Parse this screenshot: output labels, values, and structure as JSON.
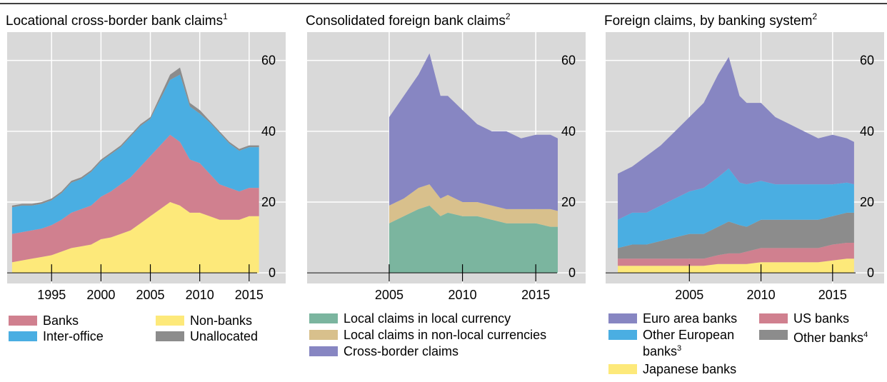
{
  "chart_data": [
    {
      "type": "area",
      "title": "Locational cross-border bank claims",
      "title_note": "1",
      "x": [
        1991,
        1992,
        1993,
        1994,
        1995,
        1996,
        1997,
        1998,
        1999,
        2000,
        2001,
        2002,
        2003,
        2004,
        2005,
        2006,
        2007,
        2008,
        2009,
        2010,
        2011,
        2012,
        2013,
        2014,
        2015,
        2016
      ],
      "xlim": [
        1990.5,
        2018.7
      ],
      "xticks": [
        1995,
        2000,
        2005,
        2010,
        2015
      ],
      "ylim": [
        -3,
        68
      ],
      "yticks": [
        0,
        20,
        40,
        60
      ],
      "grid": true,
      "series": [
        {
          "name": "Non-banks",
          "color": "#fde97a",
          "values": [
            3,
            3.5,
            4,
            4.5,
            5,
            6,
            7,
            7.5,
            8,
            9.5,
            10,
            11,
            12,
            14,
            16,
            18,
            20,
            19,
            17,
            17,
            16,
            15,
            15,
            15,
            16,
            16
          ]
        },
        {
          "name": "Banks",
          "color": "#d0808f",
          "values": [
            8,
            8,
            8,
            8,
            8.5,
            9,
            10,
            10.5,
            11,
            12,
            13,
            14,
            15,
            16,
            17,
            18,
            19,
            18,
            15,
            14,
            12,
            10,
            9,
            8,
            8,
            8
          ]
        },
        {
          "name": "Inter-office",
          "color": "#4aaee2",
          "values": [
            7.5,
            7.5,
            7,
            7,
            7,
            7.5,
            8.5,
            8.5,
            9.5,
            10,
            10.5,
            10.5,
            11.5,
            11.5,
            10.5,
            13,
            15.5,
            19,
            15,
            14,
            14.5,
            14.5,
            12.5,
            11.5,
            11.5,
            11.5
          ]
        },
        {
          "name": "Unallocated",
          "color": "#8c8c8c",
          "values": [
            0.5,
            0.5,
            0.5,
            0.5,
            0.5,
            0.5,
            0.5,
            0.5,
            0.5,
            0.5,
            0.5,
            0.5,
            0.5,
            0.5,
            0.5,
            1,
            1.5,
            2,
            1,
            1,
            0.5,
            0.5,
            0.5,
            0.5,
            0.5,
            0.5
          ]
        }
      ]
    },
    {
      "type": "area",
      "title": "Consolidated foreign bank claims",
      "title_note": "2",
      "x": [
        2005,
        2006,
        2007,
        2007.75,
        2008.5,
        2009,
        2010,
        2011,
        2012,
        2013,
        2014,
        2015,
        2016,
        2016.5
      ],
      "xlim": [
        1999.4,
        2018.4
      ],
      "xticks": [
        2005,
        2010,
        2015
      ],
      "ylim": [
        -3,
        68
      ],
      "yticks": [
        0,
        20,
        40,
        60
      ],
      "grid": true,
      "series": [
        {
          "name": "Local claims in local currency",
          "color": "#7bb59f",
          "values": [
            14,
            16,
            18,
            19,
            16,
            17,
            16,
            16,
            15,
            14,
            14,
            14,
            13,
            13
          ]
        },
        {
          "name": "Local claims in non-local currencies",
          "color": "#d8c08c",
          "values": [
            5,
            5,
            6,
            6,
            5,
            5,
            4,
            4,
            4,
            4,
            4,
            4,
            5,
            4.5
          ]
        },
        {
          "name": "Cross-border claims",
          "color": "#8786c2",
          "values": [
            25,
            29,
            32,
            37,
            29,
            28,
            26,
            22,
            21,
            22,
            20,
            21,
            21,
            20.5
          ]
        }
      ]
    },
    {
      "type": "area",
      "title": "Foreign claims, by banking system",
      "title_note": "2",
      "x": [
        2000,
        2001,
        2002,
        2003,
        2004,
        2005,
        2006,
        2007,
        2007.75,
        2008.5,
        2009,
        2010,
        2011,
        2012,
        2013,
        2014,
        2015,
        2016,
        2016.5
      ],
      "xlim": [
        1999.15,
        2018.6
      ],
      "xticks": [
        2005,
        2010,
        2015
      ],
      "ylim": [
        -3,
        68
      ],
      "yticks": [
        0,
        20,
        40,
        60
      ],
      "grid": true,
      "series": [
        {
          "name": "Japanese banks",
          "color": "#fde97a",
          "values": [
            2,
            2,
            2,
            2,
            2,
            2,
            2,
            2.5,
            2.5,
            2.5,
            2.5,
            3,
            3,
            3,
            3,
            3,
            3.5,
            4,
            4
          ]
        },
        {
          "name": "US banks",
          "color": "#d0808f",
          "values": [
            2,
            2,
            2,
            2,
            2,
            2,
            2,
            2.5,
            3,
            3,
            3.5,
            4,
            4,
            4,
            4,
            4,
            4.5,
            4.5,
            4.5
          ]
        },
        {
          "name": "Other banks",
          "note": "4",
          "color": "#8c8c8c",
          "values": [
            3,
            4,
            4,
            5,
            6,
            7,
            7,
            8,
            9,
            8,
            7,
            8,
            8,
            8,
            8,
            8,
            8,
            8.5,
            8.5
          ]
        },
        {
          "name": "Other European banks",
          "note": "3",
          "color": "#4aaee2",
          "values": [
            8,
            9,
            9,
            10,
            11,
            12,
            13,
            14,
            15,
            12,
            12,
            11,
            10,
            10,
            10,
            10,
            9,
            8.5,
            8
          ]
        },
        {
          "name": "Euro area banks",
          "color": "#8786c2",
          "values": [
            13,
            13,
            16,
            17,
            19,
            21,
            24,
            29,
            31.5,
            24.5,
            23,
            22,
            19,
            17,
            15,
            13,
            14,
            12.5,
            12
          ]
        }
      ]
    }
  ]
}
